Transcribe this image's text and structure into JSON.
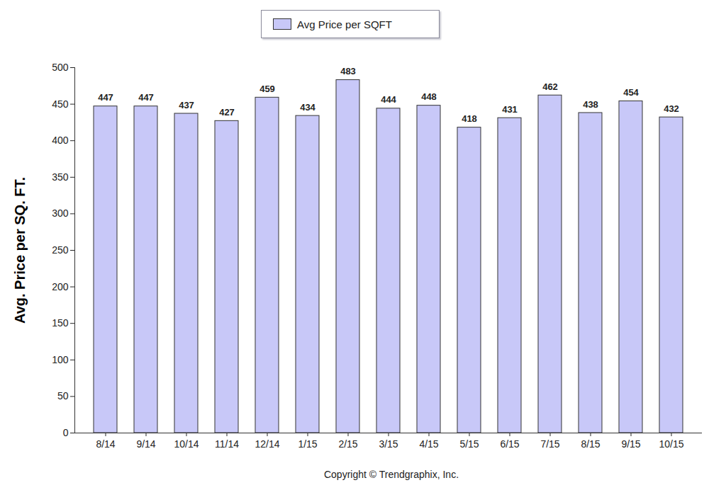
{
  "chart_data": {
    "type": "bar",
    "categories": [
      "8/14",
      "9/14",
      "10/14",
      "11/14",
      "12/14",
      "1/15",
      "2/15",
      "3/15",
      "4/15",
      "5/15",
      "6/15",
      "7/15",
      "8/15",
      "9/15",
      "10/15"
    ],
    "series": [
      {
        "name": "Avg Price per SQFT",
        "color": "#c8c8f8",
        "values": [
          447,
          447,
          437,
          427,
          459,
          434,
          483,
          444,
          448,
          418,
          431,
          462,
          438,
          454,
          432
        ]
      }
    ],
    "ylabel": "Avg. Price per SQ. FT.",
    "caption": "Copyright © Trendgraphix, Inc.",
    "ylim": [
      0,
      500
    ],
    "yticks": [
      0,
      50,
      100,
      150,
      200,
      250,
      300,
      350,
      400,
      450,
      500
    ],
    "grid": false,
    "legend": "top",
    "data_labels": true
  }
}
